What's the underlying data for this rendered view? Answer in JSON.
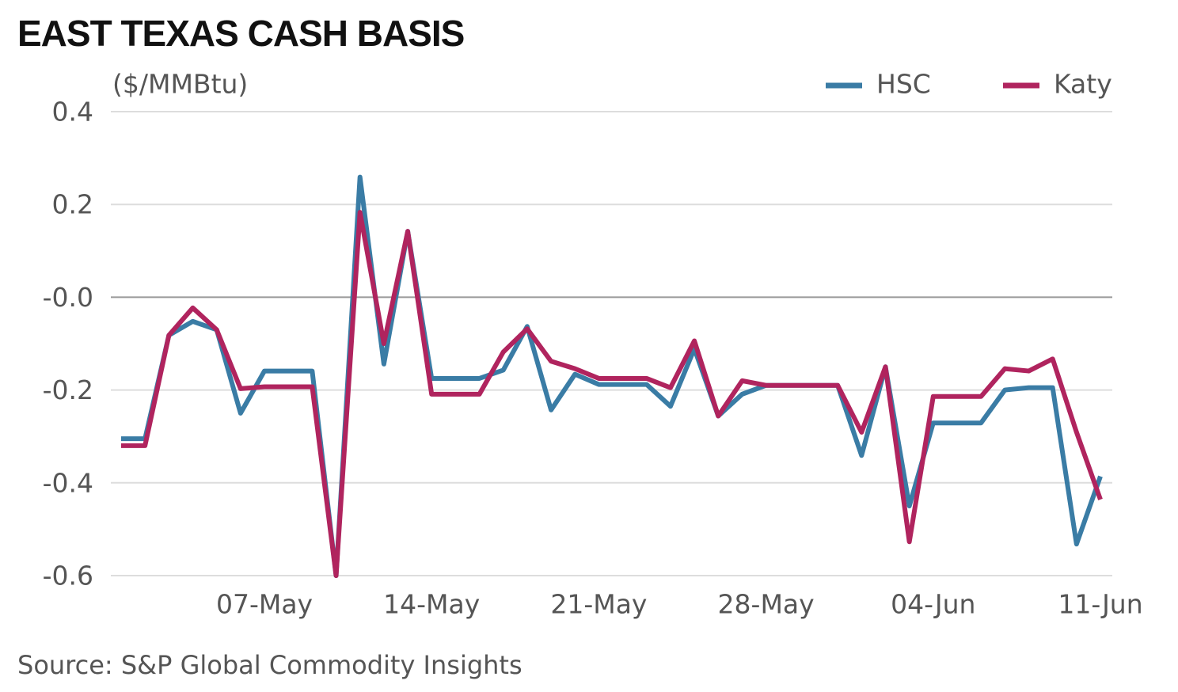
{
  "chart_data": {
    "type": "line",
    "title": "EAST TEXAS CASH BASIS",
    "y_label": "($/MMBtu)",
    "source": "Source: S&P Global Commodity Insights",
    "x": [
      "01-May",
      "02-May",
      "03-May",
      "04-May",
      "05-May",
      "06-May",
      "07-May",
      "08-May",
      "09-May",
      "10-May",
      "11-May",
      "12-May",
      "13-May",
      "14-May",
      "15-May",
      "16-May",
      "17-May",
      "18-May",
      "19-May",
      "20-May",
      "21-May",
      "22-May",
      "23-May",
      "24-May",
      "25-May",
      "26-May",
      "27-May",
      "28-May",
      "29-May",
      "30-May",
      "31-May",
      "01-Jun",
      "02-Jun",
      "03-Jun",
      "04-Jun",
      "05-Jun",
      "06-Jun",
      "07-Jun",
      "08-Jun",
      "09-Jun",
      "10-Jun",
      "11-Jun"
    ],
    "xticks": [
      "07-May",
      "14-May",
      "21-May",
      "28-May",
      "04-Jun",
      "11-Jun"
    ],
    "series": [
      {
        "name": "HSC",
        "color": "#3a7ca5",
        "values": [
          -0.305,
          -0.305,
          -0.082,
          -0.052,
          -0.07,
          -0.25,
          -0.159,
          -0.159,
          -0.159,
          -0.6,
          0.259,
          -0.144,
          0.142,
          -0.175,
          -0.175,
          -0.175,
          -0.157,
          -0.063,
          -0.243,
          -0.166,
          -0.188,
          -0.188,
          -0.188,
          -0.235,
          -0.111,
          -0.256,
          -0.209,
          -0.19,
          -0.19,
          -0.19,
          -0.19,
          -0.341,
          -0.15,
          -0.45,
          -0.271,
          -0.271,
          -0.271,
          -0.2,
          -0.195,
          -0.195,
          -0.532,
          -0.386
        ]
      },
      {
        "name": "Katy",
        "color": "#b0245e",
        "values": [
          -0.32,
          -0.32,
          -0.082,
          -0.023,
          -0.07,
          -0.197,
          -0.193,
          -0.193,
          -0.193,
          -0.6,
          0.183,
          -0.1,
          0.142,
          -0.209,
          -0.209,
          -0.209,
          -0.118,
          -0.068,
          -0.138,
          -0.154,
          -0.175,
          -0.175,
          -0.175,
          -0.195,
          -0.094,
          -0.256,
          -0.18,
          -0.19,
          -0.19,
          -0.19,
          -0.19,
          -0.291,
          -0.15,
          -0.527,
          -0.214,
          -0.214,
          -0.214,
          -0.154,
          -0.159,
          -0.133,
          -0.291,
          -0.436
        ]
      }
    ],
    "ylim": [
      -0.6,
      0.4
    ],
    "yticks": [
      0.4,
      0.2,
      {
        "value": 0,
        "label": "-0.0"
      },
      -0.2,
      -0.4,
      -0.6
    ],
    "grid": true,
    "legend": "top-right"
  }
}
